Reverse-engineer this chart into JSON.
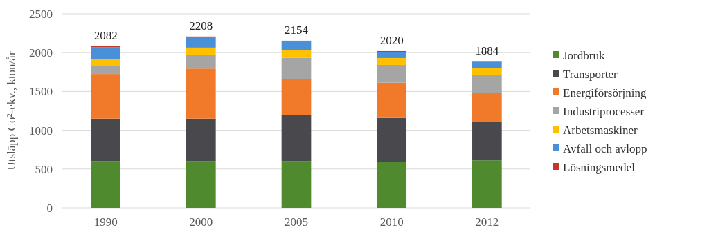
{
  "chart_data": {
    "type": "bar",
    "stacked": true,
    "ylabel": "Utsläpp Co²-ekv., kton/år",
    "categories": [
      "1990",
      "2000",
      "2005",
      "2010",
      "2012"
    ],
    "series": [
      {
        "name": "Jordbruk",
        "color": "#4f8a2e",
        "values": [
          600,
          600,
          600,
          588,
          612
        ]
      },
      {
        "name": "Transporter",
        "color": "#48484d",
        "values": [
          550,
          550,
          600,
          571,
          496
        ]
      },
      {
        "name": "Energiförsörjning",
        "color": "#f07a2a",
        "values": [
          575,
          645,
          455,
          454,
          377
        ]
      },
      {
        "name": "Industriprocesser",
        "color": "#a5a5a5",
        "values": [
          100,
          175,
          280,
          229,
          223
        ]
      },
      {
        "name": "Arbetsmaskiner",
        "color": "#ffc000",
        "values": [
          95,
          95,
          99,
          89,
          98
        ]
      },
      {
        "name": "Avfall och avlopp",
        "color": "#4a90d9",
        "values": [
          151,
          135,
          120,
          74,
          78
        ]
      },
      {
        "name": "Lösningsmedel",
        "color": "#c0392b",
        "values": [
          11,
          8,
          null,
          15,
          null
        ]
      }
    ],
    "totals": [
      "2082",
      "2208",
      "2154",
      "2020",
      "1884"
    ],
    "ylim": [
      0,
      2500
    ],
    "yticks": [
      0,
      500,
      1000,
      1500,
      2000,
      2500
    ],
    "grid": "y",
    "legend": "right"
  }
}
